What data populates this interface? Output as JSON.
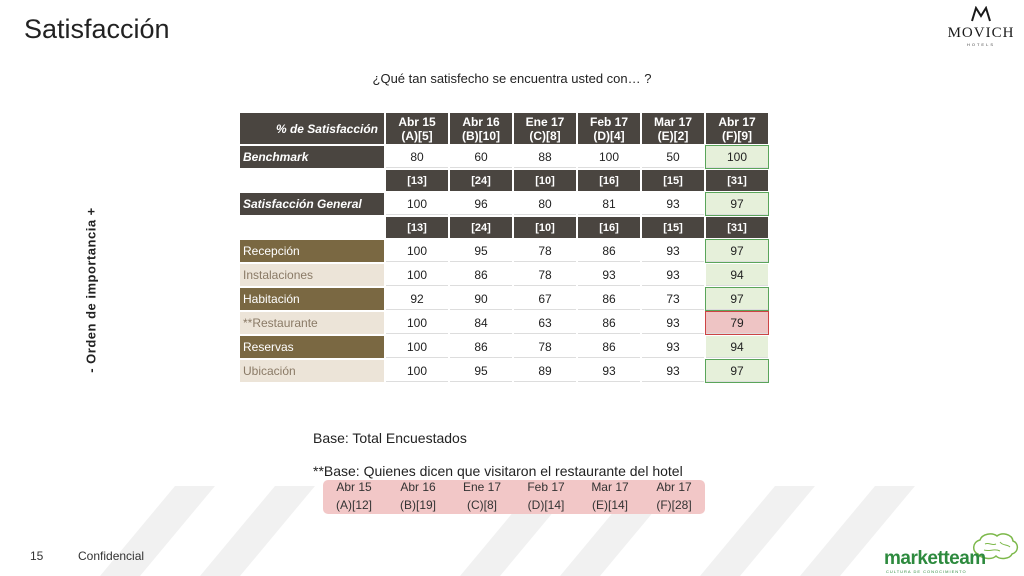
{
  "page": {
    "title": "Satisfacción",
    "question": "¿Qué tan satisfecho se encuentra usted con… ?",
    "side_label": "-   Orden de importancia  +",
    "logo_brand": "MOVICH",
    "logo_sub": "HOTELS",
    "footer_number": "15",
    "footer_text": "Confidencial",
    "footer_logo": "marketteam",
    "footer_logo_sub": "CULTURA DE CONOCIMIENTO"
  },
  "table": {
    "header_label": "% de Satisfacción",
    "periods": [
      {
        "l1": "Abr 15",
        "l2": "(A)[5]"
      },
      {
        "l1": "Abr 16",
        "l2": "(B)[10]"
      },
      {
        "l1": "Ene 17",
        "l2": "(C)[8]"
      },
      {
        "l1": "Feb 17",
        "l2": "(D)[4]"
      },
      {
        "l1": "Mar 17",
        "l2": "(E)[2]"
      },
      {
        "l1": "Abr 17",
        "l2": "(F)[9]"
      }
    ],
    "benchmark": {
      "label": "Benchmark",
      "values": [
        "80",
        "60",
        "88",
        "100",
        "50",
        "100"
      ]
    },
    "bases_general": [
      "[13]",
      "[24]",
      "[10]",
      "[16]",
      "[15]",
      "[31]"
    ],
    "general": {
      "label": "Satisfacción General",
      "values": [
        "100",
        "96",
        "80",
        "81",
        "93",
        "97"
      ]
    },
    "bases_items": [
      "[13]",
      "[24]",
      "[10]",
      "[16]",
      "[15]",
      "[31]"
    ],
    "items": [
      {
        "label": "Recepción",
        "values": [
          "100",
          "95",
          "78",
          "86",
          "93",
          "97"
        ],
        "last_status": "good"
      },
      {
        "label": "Instalaciones",
        "values": [
          "100",
          "86",
          "78",
          "93",
          "93",
          "94"
        ],
        "last_status": "good"
      },
      {
        "label": "Habitación",
        "values": [
          "92",
          "90",
          "67",
          "86",
          "73",
          "97"
        ],
        "last_status": "good"
      },
      {
        "label": "**Restaurante",
        "values": [
          "100",
          "84",
          "63",
          "86",
          "93",
          "79"
        ],
        "last_status": "bad"
      },
      {
        "label": "Reservas",
        "values": [
          "100",
          "86",
          "78",
          "86",
          "93",
          "94"
        ],
        "last_status": "good"
      },
      {
        "label": "Ubicación",
        "values": [
          "100",
          "95",
          "89",
          "93",
          "93",
          "97"
        ],
        "last_status": "good"
      }
    ]
  },
  "bases": {
    "total": "Base: Total Encuestados",
    "restaurant": "**Base: Quienes dicen que visitaron el restaurante del hotel",
    "restaurant_periods": [
      {
        "l1": "Abr 15",
        "l2": "(A)[12]"
      },
      {
        "l1": "Abr 16",
        "l2": "(B)[19]"
      },
      {
        "l1": "Ene 17",
        "l2": "(C)[8]"
      },
      {
        "l1": "Feb 17",
        "l2": "(D)[14]"
      },
      {
        "l1": "Mar 17",
        "l2": "(E)[14]"
      },
      {
        "l1": "Abr 17",
        "l2": "(F)[28]"
      }
    ]
  },
  "colors": {
    "header_dark": "#4a4540",
    "label_brown": "#7a6842",
    "label_light": "#ece4d8",
    "good_fill": "#e6f0da",
    "bad_fill": "#eec4c4",
    "base_box": "#f2c7c7"
  }
}
